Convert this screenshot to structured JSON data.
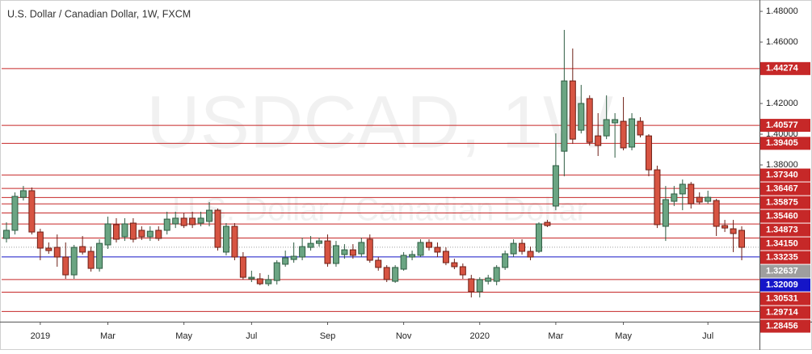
{
  "chart_data": {
    "type": "candlestick",
    "title": "U.S. Dollar / Canadian Dollar, 1W, FXCM",
    "watermark": "USDCAD, 1W",
    "watermark_subtitle": "U.S. Dollar / Canadian Dollar",
    "categories": [
      null,
      null,
      null,
      null,
      "2019",
      null,
      null,
      null,
      null,
      null,
      null,
      null,
      "Mar",
      null,
      null,
      null,
      null,
      null,
      null,
      null,
      null,
      "May",
      null,
      null,
      null,
      null,
      null,
      null,
      null,
      "Jul",
      null,
      null,
      null,
      null,
      null,
      null,
      null,
      null,
      "Sep",
      null,
      null,
      null,
      null,
      null,
      null,
      null,
      null,
      "Nov",
      null,
      null,
      null,
      null,
      null,
      null,
      null,
      null,
      "2020",
      null,
      null,
      null,
      null,
      null,
      null,
      null,
      null,
      "Mar",
      null,
      null,
      null,
      null,
      null,
      null,
      null,
      "May",
      null,
      null,
      null,
      null,
      null,
      null,
      null,
      null,
      null,
      "Jul",
      null,
      null,
      null,
      null
    ],
    "open": [
      1.3321,
      1.3374,
      1.3589,
      1.3632,
      1.3363,
      1.3258,
      1.3263,
      1.32,
      1.3084,
      1.3268,
      1.3237,
      1.3126,
      1.3279,
      1.3411,
      1.3332,
      1.3421,
      1.3374,
      1.3332,
      1.3374,
      1.3374,
      1.3416,
      1.3453,
      1.3453,
      1.3421,
      1.3432,
      1.3505,
      1.3232,
      1.34,
      1.32,
      1.3058,
      1.3058,
      1.3026,
      1.3047,
      1.3153,
      1.3184,
      1.32,
      1.3263,
      1.3289,
      1.3305,
      1.3158,
      1.3216,
      1.3247,
      1.3221,
      1.3316,
      1.3179,
      1.3132,
      1.3042,
      1.3121,
      1.32,
      1.3211,
      1.3295,
      1.3263,
      1.3237,
      1.3163,
      1.3137,
      1.3058,
      1.2974,
      1.3042,
      1.3042,
      1.3132,
      1.3221,
      1.3289,
      1.3237,
      1.3237,
      1.3426,
      1.3532,
      1.3889,
      1.4347,
      1.4026,
      1.4232,
      1.3989,
      1.3989,
      1.4074,
      1.4084,
      1.3916,
      1.4084,
      1.3989,
      1.3768,
      1.34,
      1.3563,
      1.3611,
      1.3674,
      1.3589,
      1.3563,
      1.3568,
      1.3405,
      1.3384,
      1.3374
    ],
    "high": [
      1.3426,
      1.3621,
      1.3663,
      1.3653,
      1.3384,
      1.3295,
      1.3347,
      1.3295,
      1.3279,
      1.3337,
      1.3268,
      1.3316,
      1.3463,
      1.3453,
      1.3453,
      1.3453,
      1.34,
      1.34,
      1.34,
      1.3495,
      1.3495,
      1.3489,
      1.3495,
      1.3495,
      1.3558,
      1.3516,
      1.3421,
      1.3421,
      1.3232,
      1.3111,
      1.3095,
      1.3084,
      1.3179,
      1.3242,
      1.3295,
      1.3326,
      1.3337,
      1.3326,
      1.3347,
      1.3305,
      1.3284,
      1.3284,
      1.3326,
      1.3347,
      1.32,
      1.3147,
      1.3147,
      1.3232,
      1.3242,
      1.3316,
      1.3316,
      1.3295,
      1.3263,
      1.3189,
      1.3158,
      1.3084,
      1.3068,
      1.3084,
      1.3147,
      1.3242,
      1.3316,
      1.3316,
      1.3268,
      1.3426,
      1.3442,
      1.4005,
      1.4679,
      1.4558,
      1.4321,
      1.4253,
      1.4137,
      1.4253,
      1.4137,
      1.4242,
      1.4137,
      1.4111,
      1.4,
      1.3795,
      1.3663,
      1.3663,
      1.3705,
      1.3689,
      1.3621,
      1.3632,
      1.3579,
      1.3442,
      1.3442,
      1.34
    ],
    "low": [
      1.3295,
      1.3347,
      1.3568,
      1.3347,
      1.3179,
      1.3221,
      1.3137,
      1.3058,
      1.3058,
      1.3216,
      1.3105,
      1.3105,
      1.3253,
      1.3295,
      1.3305,
      1.3295,
      1.3311,
      1.3305,
      1.3305,
      1.3347,
      1.3389,
      1.3389,
      1.3389,
      1.34,
      1.34,
      1.3242,
      1.3211,
      1.3179,
      1.3053,
      1.3037,
      1.3016,
      1.3011,
      1.3021,
      1.3137,
      1.3163,
      1.3179,
      1.3242,
      1.3268,
      1.3137,
      1.3137,
      1.3189,
      1.3189,
      1.32,
      1.3163,
      1.3111,
      1.3037,
      1.3032,
      1.3111,
      1.3179,
      1.32,
      1.3242,
      1.32,
      1.3147,
      1.3121,
      1.3058,
      1.2937,
      1.2937,
      1.3021,
      1.3016,
      1.3116,
      1.32,
      1.3216,
      1.3179,
      1.3226,
      1.3395,
      1.3505,
      1.3726,
      1.3937,
      1.4005,
      1.3926,
      1.3858,
      1.3968,
      1.3847,
      1.3895,
      1.3895,
      1.3979,
      1.3726,
      1.3389,
      1.3305,
      1.3532,
      1.3505,
      1.3516,
      1.3542,
      1.3547,
      1.3337,
      1.3363,
      1.3232,
      1.3179
    ],
    "close": [
      1.3374,
      1.3595,
      1.3632,
      1.3363,
      1.3258,
      1.3242,
      1.32,
      1.3084,
      1.3263,
      1.3232,
      1.3126,
      1.3289,
      1.3416,
      1.3316,
      1.3416,
      1.3316,
      1.3332,
      1.3368,
      1.3321,
      1.3447,
      1.3453,
      1.3405,
      1.3411,
      1.3453,
      1.3505,
      1.3263,
      1.34,
      1.32,
      1.3068,
      1.3068,
      1.3026,
      1.3053,
      1.3163,
      1.3195,
      1.3205,
      1.3268,
      1.3289,
      1.3305,
      1.3158,
      1.3274,
      1.3247,
      1.3211,
      1.3295,
      1.3179,
      1.3132,
      1.3053,
      1.3132,
      1.3211,
      1.3216,
      1.3295,
      1.3263,
      1.3232,
      1.3163,
      1.3137,
      1.3084,
      1.2974,
      1.3053,
      1.3063,
      1.3132,
      1.3221,
      1.3289,
      1.3237,
      1.32,
      1.3416,
      1.3405,
      1.3795,
      1.4347,
      1.3968,
      1.42,
      1.3947,
      1.3926,
      1.4095,
      1.4095,
      1.3911,
      1.41,
      1.3995,
      1.3768,
      1.3411,
      1.3574,
      1.3611,
      1.3674,
      1.3547,
      1.3558,
      1.3589,
      1.34,
      1.3389,
      1.3353,
      1.3263
    ],
    "up_color": "#6ba583",
    "down_color": "#d75442",
    "ylim": [
      1.2779,
      1.4874
    ],
    "yticks": [
      {
        "value": 1.48,
        "label": "1.48000"
      },
      {
        "value": 1.46,
        "label": "1.46000"
      },
      {
        "value": 1.42,
        "label": "1.42000"
      },
      {
        "value": 1.4,
        "label": "1.40000"
      },
      {
        "value": 1.38,
        "label": "1.38000"
      }
    ],
    "price_lines": [
      {
        "value": 1.44274,
        "label": "1.44274",
        "color": "#c62828",
        "line_style": "solid"
      },
      {
        "value": 1.40577,
        "label": "1.40577",
        "color": "#c62828",
        "line_style": "solid"
      },
      {
        "value": 1.39405,
        "label": "1.39405",
        "color": "#c62828",
        "line_style": "solid"
      },
      {
        "value": 1.3734,
        "label": "1.37340",
        "color": "#c62828",
        "line_style": "solid"
      },
      {
        "value": 1.36467,
        "label": "1.36467",
        "color": "#c62828",
        "line_style": "solid"
      },
      {
        "value": 1.35875,
        "label": "1.35875",
        "color": "#c62828",
        "line_style": "solid"
      },
      {
        "value": 1.3546,
        "label": "1.35460",
        "color": "#c62828",
        "line_style": "solid"
      },
      {
        "value": 1.34873,
        "label": "1.34873",
        "color": "#c62828",
        "line_style": "solid"
      },
      {
        "value": 1.3415,
        "label": "1.34150",
        "color": "#c62828",
        "line_style": "solid"
      },
      {
        "value": 1.33235,
        "label": "1.33235",
        "color": "#c62828",
        "line_style": "solid"
      },
      {
        "value": 1.32637,
        "label": "1.32637",
        "color": "#9e9e9e",
        "line_style": "dotted"
      },
      {
        "value": 1.32009,
        "label": "1.32009",
        "color": "#1515c8",
        "line_style": "solid"
      },
      {
        "value": 1.30531,
        "label": "1.30531",
        "color": "#c62828",
        "line_style": "solid"
      },
      {
        "value": 1.29714,
        "label": "1.29714",
        "color": "#c62828",
        "line_style": "solid"
      },
      {
        "value": 1.28456,
        "label": "1.28456",
        "color": "#c62828",
        "line_style": "solid"
      }
    ]
  }
}
